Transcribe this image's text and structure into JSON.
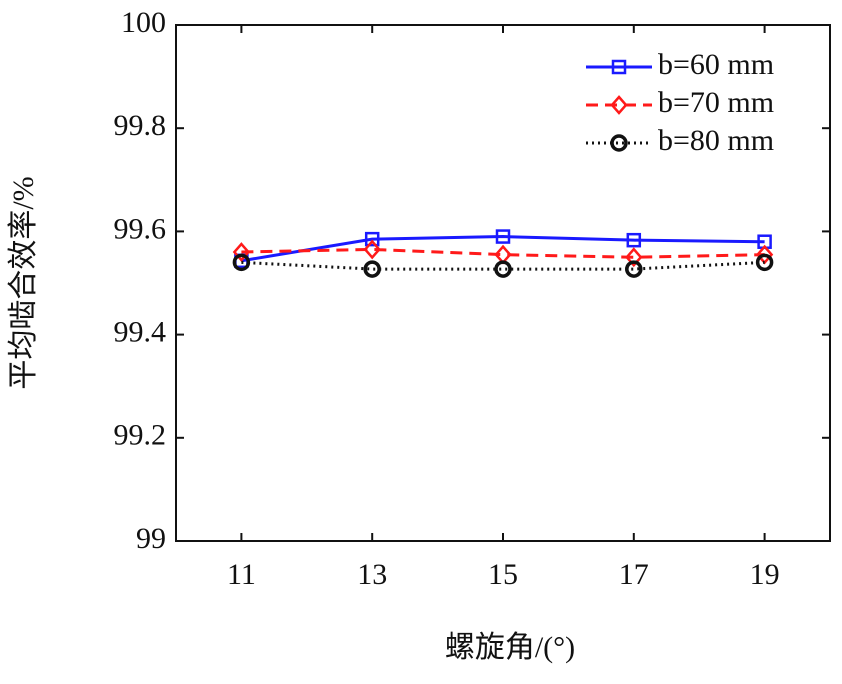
{
  "chart_data": {
    "type": "line",
    "x_label": "螺旋角/(°)",
    "y_label": "平均啮合效率/%",
    "x": [
      11,
      13,
      15,
      17,
      19
    ],
    "xlim": [
      10,
      20
    ],
    "xticks": [
      11,
      13,
      15,
      17,
      19
    ],
    "ylim": [
      99,
      100
    ],
    "yticks": [
      99,
      99.2,
      99.4,
      99.6,
      99.8,
      100
    ],
    "legend": "upper-right",
    "series": [
      {
        "name": "b=60 mm",
        "color": "#1a1aff",
        "linestyle": "solid",
        "marker": "square",
        "values": [
          99.543,
          99.585,
          99.59,
          99.583,
          99.58
        ]
      },
      {
        "name": "b=70 mm",
        "color": "#ff1a1a",
        "linestyle": "dashed",
        "marker": "diamond",
        "values": [
          99.56,
          99.565,
          99.555,
          99.55,
          99.555
        ]
      },
      {
        "name": "b=80 mm",
        "color": "#111111",
        "linestyle": "dotted",
        "marker": "circle",
        "values": [
          99.54,
          99.527,
          99.527,
          99.527,
          99.54
        ]
      }
    ]
  }
}
